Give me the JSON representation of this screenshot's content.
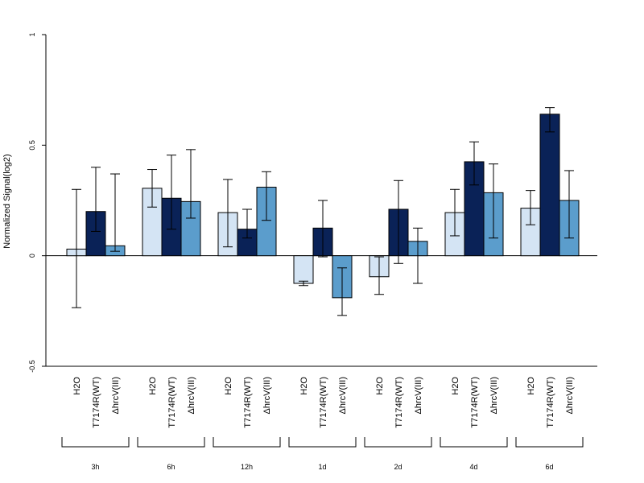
{
  "chart_data": {
    "type": "bar",
    "ylabel": "Normalized Signal(log2)",
    "ylim": [
      -0.5,
      1
    ],
    "yticks": [
      -0.5,
      0,
      0.5,
      1
    ],
    "ytick_labels": [
      "-0.5",
      "0",
      "0.5",
      "1"
    ],
    "series_names": [
      "H2O",
      "T7174R(WT)",
      "ΔhrcV(III)"
    ],
    "colors": [
      "#d4e4f4",
      "#0a2257",
      "#5b9dcc"
    ],
    "groups": [
      {
        "label": "3h",
        "values": [
          0.03,
          0.2,
          0.045
        ],
        "err_low": [
          -0.235,
          0.11,
          0.02
        ],
        "err_high": [
          0.3,
          0.4,
          0.37
        ]
      },
      {
        "label": "6h",
        "values": [
          0.305,
          0.26,
          0.245
        ],
        "err_low": [
          0.22,
          0.12,
          0.17
        ],
        "err_high": [
          0.39,
          0.455,
          0.48
        ]
      },
      {
        "label": "12h",
        "values": [
          0.195,
          0.12,
          0.31
        ],
        "err_low": [
          0.04,
          0.08,
          0.16
        ],
        "err_high": [
          0.345,
          0.21,
          0.38
        ]
      },
      {
        "label": "1d",
        "values": [
          -0.125,
          0.125,
          -0.19
        ],
        "err_low": [
          -0.135,
          -0.005,
          -0.27
        ],
        "err_high": [
          -0.115,
          0.25,
          -0.055
        ]
      },
      {
        "label": "2d",
        "values": [
          -0.095,
          0.21,
          0.065
        ],
        "err_low": [
          -0.175,
          -0.035,
          -0.125
        ],
        "err_high": [
          -0.005,
          0.34,
          0.125
        ]
      },
      {
        "label": "4d",
        "values": [
          0.195,
          0.425,
          0.285
        ],
        "err_low": [
          0.09,
          0.32,
          0.08
        ],
        "err_high": [
          0.3,
          0.515,
          0.415
        ]
      },
      {
        "label": "6d",
        "values": [
          0.215,
          0.64,
          0.25
        ],
        "err_low": [
          0.14,
          0.56,
          0.08
        ],
        "err_high": [
          0.295,
          0.67,
          0.385
        ]
      }
    ]
  }
}
